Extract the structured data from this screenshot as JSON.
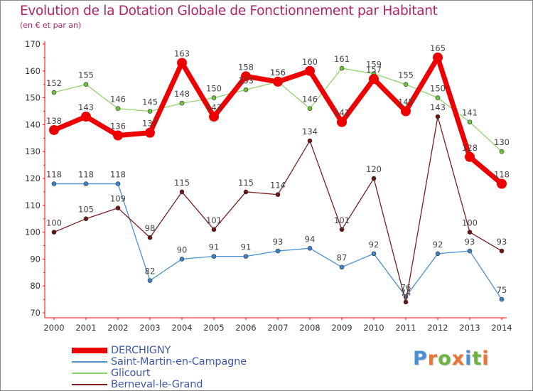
{
  "title": "Evolution de la Dotation Globale de Fonctionnement par Habitant",
  "subtitle": "(en € et par an)",
  "logo": {
    "text": "Proxiti",
    "letter_colors": [
      "#4a8fd6",
      "#e8743a",
      "#6db33f",
      "#e8743a",
      "#4a8fd6",
      "#6db33f",
      "#e8743a"
    ]
  },
  "chart_data": {
    "type": "line",
    "title": "Evolution de la Dotation Globale de Fonctionnement par Habitant",
    "subtitle": "(en € et par an)",
    "xlabel": "",
    "ylabel": "",
    "x": [
      "2000",
      "2001",
      "2002",
      "2003",
      "2004",
      "2005",
      "2006",
      "2007",
      "2008",
      "2009",
      "2010",
      "2011",
      "2012",
      "2013",
      "2014"
    ],
    "ylim": [
      70,
      170
    ],
    "yticks": [
      70,
      80,
      90,
      100,
      110,
      120,
      130,
      140,
      150,
      160,
      170
    ],
    "grid": false,
    "legend_position": "bottom-left",
    "series": [
      {
        "name": "DERCHIGNY",
        "color": "#ee0000",
        "marker_color": "#ee0000",
        "emphasis": true,
        "values": [
          138,
          143,
          136,
          137,
          163,
          143,
          158,
          156,
          160,
          141,
          157,
          145,
          165,
          128,
          118
        ],
        "labels": [
          "138",
          "143",
          "136",
          "137",
          "163",
          "143",
          "158",
          "156",
          "160",
          "141",
          "157",
          "145",
          "165",
          "128",
          "118"
        ]
      },
      {
        "name": "Saint-Martin-en-Campagne",
        "color": "#4a90d0",
        "marker_color": "#3d82c6",
        "emphasis": false,
        "values": [
          118,
          118,
          118,
          82,
          90,
          91,
          91,
          93,
          94,
          87,
          92,
          76,
          92,
          93,
          75
        ],
        "labels": [
          "118",
          "118",
          "118",
          "82",
          "90",
          "91",
          "91",
          "93",
          "94",
          "87",
          "92",
          "76",
          "92",
          "93",
          "75"
        ]
      },
      {
        "name": "Glicourt",
        "color": "#8fd36a",
        "marker_color": "#6cc23a",
        "emphasis": false,
        "values": [
          152,
          155,
          146,
          145,
          148,
          150,
          153,
          156,
          146,
          161,
          159,
          155,
          150,
          141,
          130
        ],
        "labels": [
          "152",
          "155",
          "146",
          "145",
          "148",
          "150",
          "153",
          "156",
          "146",
          "161",
          "159",
          "155",
          "150",
          "141",
          "130"
        ]
      },
      {
        "name": "Berneval-le-Grand",
        "color": "#7a1e1e",
        "marker_color": "#6a1414",
        "emphasis": false,
        "values": [
          100,
          105,
          109,
          98,
          115,
          101,
          115,
          114,
          134,
          101,
          120,
          74,
          143,
          100,
          93
        ],
        "labels": [
          "100",
          "105",
          "109",
          "98",
          "115",
          "101",
          "115",
          "114",
          "134",
          "101",
          "120",
          "74",
          "143",
          "100",
          "93"
        ]
      }
    ]
  }
}
